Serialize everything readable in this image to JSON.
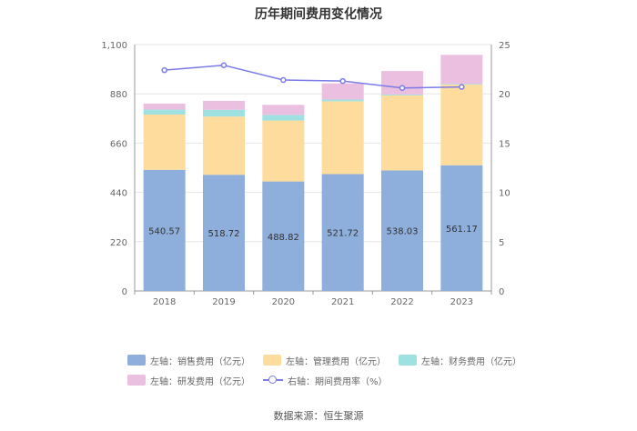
{
  "chart_data": {
    "type": "bar",
    "stacked": true,
    "title": "历年期间费用变化情况",
    "categories": [
      "2018",
      "2019",
      "2020",
      "2021",
      "2022",
      "2023"
    ],
    "y_left": {
      "min": 0,
      "max": 1100,
      "ticks": [
        "0",
        "220",
        "440",
        "660",
        "880",
        "1,100"
      ]
    },
    "y_right": {
      "min": 0,
      "max": 25,
      "ticks": [
        "0",
        "5",
        "10",
        "15",
        "20",
        "25"
      ]
    },
    "series": [
      {
        "name": "左轴：销售费用（亿元）",
        "axis": "left",
        "type": "bar",
        "color": "#8eaedb",
        "values": [
          540.57,
          518.72,
          488.82,
          521.72,
          538.03,
          561.17
        ],
        "labels": [
          "540.57",
          "518.72",
          "488.82",
          "521.72",
          "538.03",
          "561.17"
        ]
      },
      {
        "name": "左轴：管理费用（亿元）",
        "axis": "left",
        "type": "bar",
        "color": "#fddc9d",
        "values": [
          247,
          260,
          272,
          325,
          335,
          360
        ]
      },
      {
        "name": "左轴：财务费用（亿元）",
        "axis": "left",
        "type": "bar",
        "color": "#9fe0e0",
        "values": [
          22,
          30,
          25,
          8,
          4,
          3
        ]
      },
      {
        "name": "左轴：研发费用（亿元）",
        "axis": "left",
        "type": "bar",
        "color": "#ebbfdf",
        "values": [
          27,
          40,
          45,
          72,
          105,
          130
        ]
      },
      {
        "name": "右轴：期间费用率（%）",
        "axis": "right",
        "type": "line",
        "color": "#7b7bea",
        "values": [
          22.4,
          22.9,
          21.4,
          21.3,
          20.6,
          20.7
        ]
      }
    ],
    "grid": true,
    "legend_position": "bottom"
  },
  "source_label": "数据来源：恒生聚源"
}
